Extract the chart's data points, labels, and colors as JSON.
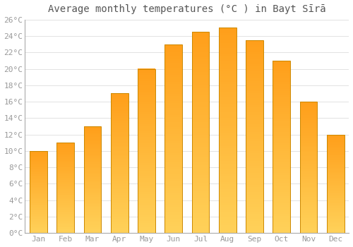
{
  "title": "Average monthly temperatures (°C ) in Bayt Sīrā",
  "months": [
    "Jan",
    "Feb",
    "Mar",
    "Apr",
    "May",
    "Jun",
    "Jul",
    "Aug",
    "Sep",
    "Oct",
    "Nov",
    "Dec"
  ],
  "temperatures": [
    10.0,
    11.0,
    13.0,
    17.0,
    20.0,
    23.0,
    24.5,
    25.0,
    23.5,
    21.0,
    16.0,
    12.0
  ],
  "bar_color_center": "#FFB300",
  "bar_color_edge": "#E08000",
  "bar_border_color": "#CC8800",
  "background_color": "#FFFFFF",
  "grid_color": "#DDDDDD",
  "text_color": "#999999",
  "title_color": "#555555",
  "ylim": [
    0,
    26
  ],
  "yticks": [
    0,
    2,
    4,
    6,
    8,
    10,
    12,
    14,
    16,
    18,
    20,
    22,
    24,
    26
  ],
  "ytick_labels": [
    "0°C",
    "2°C",
    "4°C",
    "6°C",
    "8°C",
    "10°C",
    "12°C",
    "14°C",
    "16°C",
    "18°C",
    "20°C",
    "22°C",
    "24°C",
    "26°C"
  ],
  "title_fontsize": 10,
  "tick_fontsize": 8,
  "figsize": [
    5.0,
    3.5
  ],
  "dpi": 100,
  "bar_width": 0.65
}
